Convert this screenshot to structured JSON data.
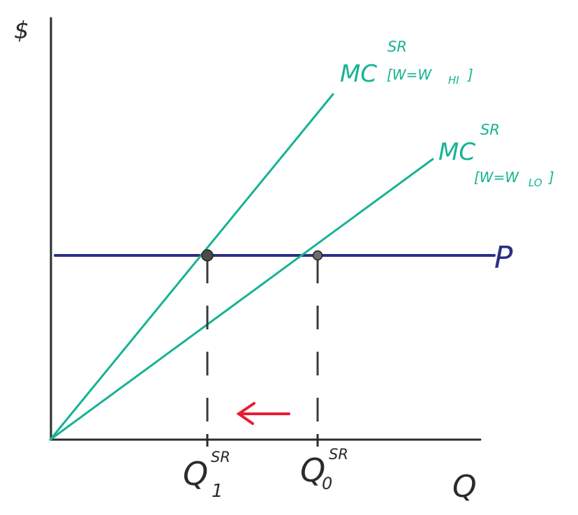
{
  "colors": {
    "axis": "#2b2b2b",
    "mc_curves": "#17b394",
    "price_line": "#2b2f85",
    "arrow": "#e81c35",
    "dashed": "#3a3a3a",
    "point_fill": "#4b4b4b"
  },
  "axes": {
    "y_label": "$",
    "x_label": "Q"
  },
  "price": {
    "label": "P"
  },
  "mc_hi": {
    "main": "MC",
    "sup": "SR",
    "sub": "[W=W",
    "sub_tail": "HI",
    "sub_close": "]"
  },
  "mc_lo": {
    "main": "MC",
    "sup": "SR",
    "sub": "[W=W",
    "sub_tail": "LO",
    "sub_close": "]"
  },
  "q1": {
    "main": "Q",
    "sup": "SR",
    "sub": "1"
  },
  "q0": {
    "main": "Q",
    "sup": "SR",
    "sub": "0"
  },
  "shift_arrow": {
    "direction": "left"
  }
}
